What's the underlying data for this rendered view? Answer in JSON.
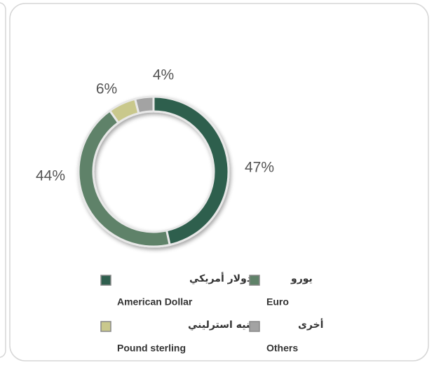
{
  "chart_data": {
    "type": "donut",
    "categories": [
      "دولار أمريكي",
      "يورو",
      "جنيه استرليني",
      "أخرى"
    ],
    "categories_en": [
      "American Dollar",
      "Euro",
      "Pound sterling",
      "Others"
    ],
    "values": [
      47,
      44,
      6,
      4
    ],
    "value_labels": [
      "47%",
      "44%",
      "6%",
      "4%"
    ],
    "colors": [
      "#2f5f4e",
      "#5f8269",
      "#c9c88c",
      "#a3a3a3"
    ]
  }
}
